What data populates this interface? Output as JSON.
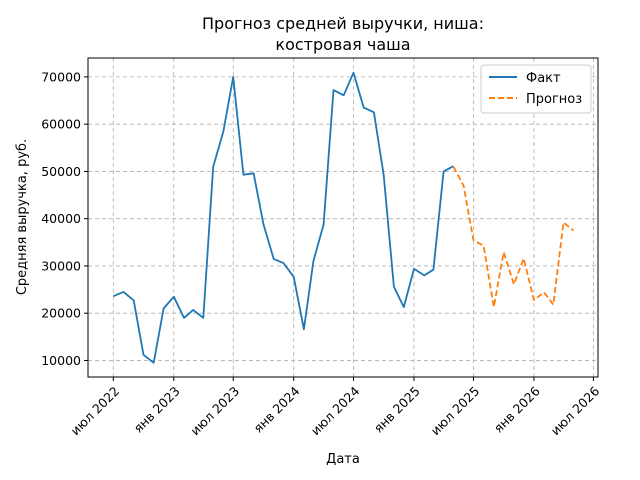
{
  "chart_data": {
    "type": "line",
    "title_lines": [
      "Прогноз средней выручки, ниша:",
      "костровая чаша"
    ],
    "xlabel": "Дата",
    "ylabel": "Средняя выручка, руб.",
    "x_tick_labels": [
      "июл 2022",
      "янв 2023",
      "июл 2023",
      "янв 2024",
      "июл 2024",
      "янв 2025",
      "июл 2025",
      "янв 2026",
      "июл 2026"
    ],
    "x_tick_dates": [
      "2022-07-01",
      "2023-01-01",
      "2023-07-01",
      "2024-01-01",
      "2024-07-01",
      "2025-01-01",
      "2025-07-01",
      "2026-01-01",
      "2026-07-01"
    ],
    "x_range": [
      "2022-04-15",
      "2026-07-15"
    ],
    "y_ticks": [
      10000,
      20000,
      30000,
      40000,
      50000,
      60000,
      70000
    ],
    "ylim": [
      6500,
      74000
    ],
    "grid": true,
    "legend_position": "top-right",
    "series": [
      {
        "name": "Факт",
        "color": "#1f77b4",
        "style": "solid",
        "points": [
          {
            "x": "2022-07-01",
            "y": 23600
          },
          {
            "x": "2022-08-01",
            "y": 24500
          },
          {
            "x": "2022-09-01",
            "y": 22700
          },
          {
            "x": "2022-10-01",
            "y": 11200
          },
          {
            "x": "2022-11-01",
            "y": 9500
          },
          {
            "x": "2022-12-01",
            "y": 21000
          },
          {
            "x": "2023-01-01",
            "y": 23500
          },
          {
            "x": "2023-02-01",
            "y": 19000
          },
          {
            "x": "2023-03-01",
            "y": 20700
          },
          {
            "x": "2023-04-01",
            "y": 19000
          },
          {
            "x": "2023-05-01",
            "y": 51000
          },
          {
            "x": "2023-06-01",
            "y": 58500
          },
          {
            "x": "2023-07-01",
            "y": 70000
          },
          {
            "x": "2023-08-01",
            "y": 49300
          },
          {
            "x": "2023-09-01",
            "y": 49600
          },
          {
            "x": "2023-10-01",
            "y": 38800
          },
          {
            "x": "2023-11-01",
            "y": 31500
          },
          {
            "x": "2023-12-01",
            "y": 30600
          },
          {
            "x": "2024-01-01",
            "y": 27700
          },
          {
            "x": "2024-02-01",
            "y": 16600
          },
          {
            "x": "2024-03-01",
            "y": 31000
          },
          {
            "x": "2024-04-01",
            "y": 38800
          },
          {
            "x": "2024-05-01",
            "y": 67200
          },
          {
            "x": "2024-06-01",
            "y": 66100
          },
          {
            "x": "2024-07-01",
            "y": 70900
          },
          {
            "x": "2024-08-01",
            "y": 63500
          },
          {
            "x": "2024-09-01",
            "y": 62500
          },
          {
            "x": "2024-10-01",
            "y": 49200
          },
          {
            "x": "2024-11-01",
            "y": 25600
          },
          {
            "x": "2024-12-01",
            "y": 21300
          },
          {
            "x": "2025-01-01",
            "y": 29400
          },
          {
            "x": "2025-02-01",
            "y": 28000
          },
          {
            "x": "2025-03-01",
            "y": 29200
          },
          {
            "x": "2025-04-01",
            "y": 50000
          },
          {
            "x": "2025-05-01",
            "y": 51100
          }
        ]
      },
      {
        "name": "Прогноз",
        "color": "#ff7f0e",
        "style": "dashed",
        "points": [
          {
            "x": "2025-05-01",
            "y": 51000
          },
          {
            "x": "2025-06-01",
            "y": 47000
          },
          {
            "x": "2025-07-01",
            "y": 35400
          },
          {
            "x": "2025-08-01",
            "y": 34300
          },
          {
            "x": "2025-09-01",
            "y": 21300
          },
          {
            "x": "2025-10-01",
            "y": 32900
          },
          {
            "x": "2025-11-01",
            "y": 26100
          },
          {
            "x": "2025-12-01",
            "y": 31600
          },
          {
            "x": "2026-01-01",
            "y": 22800
          },
          {
            "x": "2026-02-01",
            "y": 24400
          },
          {
            "x": "2026-03-01",
            "y": 21800
          },
          {
            "x": "2026-04-01",
            "y": 39200
          },
          {
            "x": "2026-05-01",
            "y": 37500
          }
        ]
      }
    ]
  }
}
